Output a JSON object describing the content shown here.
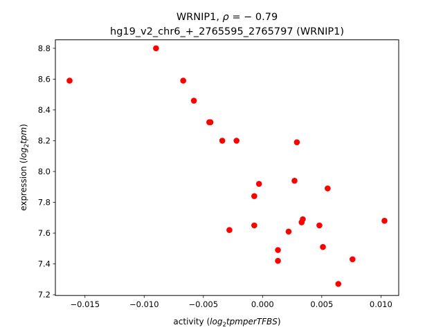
{
  "chart_data": {
    "type": "scatter",
    "title_line1_prefix": "WRNIP1, ",
    "title_line1_rho": "ρ",
    "title_line1_suffix": " = − 0.79",
    "title_line2": "hg19_v2_chr6_+_2765595_2765797 (WRNIP1)",
    "xlabel_prefix": "activity (",
    "xlabel_italic_1": "log",
    "xlabel_sub": "2",
    "xlabel_italic_2": "tpmperTFBS",
    "xlabel_suffix": ")",
    "ylabel_prefix": "expression (",
    "ylabel_italic_1": "log",
    "ylabel_sub": "2",
    "ylabel_italic_2": "tpm",
    "ylabel_suffix": ")",
    "xlim": [
      -0.0175,
      0.0115
    ],
    "ylim": [
      7.195,
      8.855
    ],
    "x_ticks": [
      {
        "value": -0.015,
        "label": "−0.015"
      },
      {
        "value": -0.01,
        "label": "−0.010"
      },
      {
        "value": -0.005,
        "label": "−0.005"
      },
      {
        "value": 0.0,
        "label": "0.000"
      },
      {
        "value": 0.005,
        "label": "0.005"
      },
      {
        "value": 0.01,
        "label": "0.010"
      }
    ],
    "y_ticks": [
      {
        "value": 7.2,
        "label": "7.2"
      },
      {
        "value": 7.4,
        "label": "7.4"
      },
      {
        "value": 7.6,
        "label": "7.6"
      },
      {
        "value": 7.8,
        "label": "7.8"
      },
      {
        "value": 8.0,
        "label": "8.0"
      },
      {
        "value": 8.2,
        "label": "8.2"
      },
      {
        "value": 8.4,
        "label": "8.4"
      },
      {
        "value": 8.6,
        "label": "8.6"
      },
      {
        "value": 8.8,
        "label": "8.8"
      }
    ],
    "grid": false,
    "marker_color": "#ff0000",
    "points": [
      {
        "x": -0.0163,
        "y": 8.59
      },
      {
        "x": -0.009,
        "y": 8.8
      },
      {
        "x": -0.0067,
        "y": 8.59
      },
      {
        "x": -0.0058,
        "y": 8.46
      },
      {
        "x": -0.0045,
        "y": 8.32
      },
      {
        "x": -0.0044,
        "y": 8.32
      },
      {
        "x": -0.0034,
        "y": 8.2
      },
      {
        "x": -0.0022,
        "y": 8.2
      },
      {
        "x": -0.0028,
        "y": 7.62
      },
      {
        "x": -0.0007,
        "y": 7.84
      },
      {
        "x": -0.0007,
        "y": 7.65
      },
      {
        "x": -0.0003,
        "y": 7.92
      },
      {
        "x": 0.0013,
        "y": 7.49
      },
      {
        "x": 0.0013,
        "y": 7.42
      },
      {
        "x": 0.0022,
        "y": 7.61
      },
      {
        "x": 0.0027,
        "y": 7.94
      },
      {
        "x": 0.0029,
        "y": 8.19
      },
      {
        "x": 0.0033,
        "y": 7.67
      },
      {
        "x": 0.0034,
        "y": 7.69
      },
      {
        "x": 0.0048,
        "y": 7.65
      },
      {
        "x": 0.0051,
        "y": 7.51
      },
      {
        "x": 0.0055,
        "y": 7.89
      },
      {
        "x": 0.0064,
        "y": 7.27
      },
      {
        "x": 0.0076,
        "y": 7.43
      },
      {
        "x": 0.0103,
        "y": 7.68
      }
    ]
  }
}
